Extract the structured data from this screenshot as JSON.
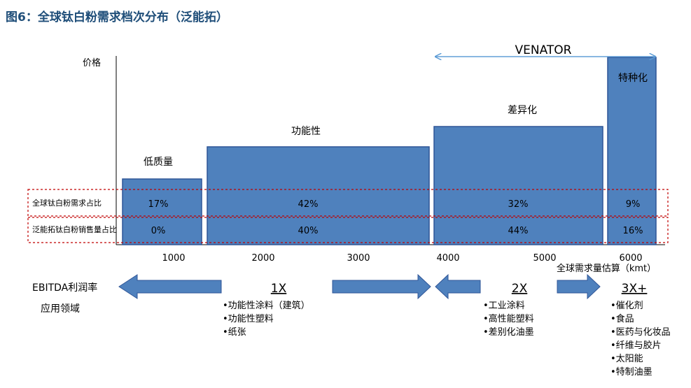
{
  "title": "图6：全球钛白粉需求档次分布（泛能拓）",
  "chart_data": {
    "type": "bar",
    "ylabel": "价格",
    "categories": [
      "低质量",
      "功能性",
      "差异化",
      "特种化"
    ],
    "x_ticks": [
      "1000",
      "2000",
      "3000",
      "4000",
      "5000",
      "6000"
    ],
    "x_axis_label": "全球需求量估算（kmt）",
    "rows": [
      {
        "label": "全球钛白粉需求占比",
        "values": [
          "17%",
          "42%",
          "32%",
          "9%"
        ]
      },
      {
        "label": "泛能拓钛白粉销售量占比",
        "values": [
          "0%",
          "40%",
          "44%",
          "16%"
        ]
      }
    ],
    "venator_label": "VENATOR"
  },
  "bottom": {
    "ebitda_line1": "EBITDA利润率",
    "ebitda_line2": "应用领域",
    "tiers": [
      {
        "label": "1X",
        "items": [
          "•功能性涂料（建筑）",
          "•功能性塑料",
          "•纸张"
        ]
      },
      {
        "label": "2X",
        "items": [
          "•工业涂料",
          "•高性能塑料",
          "•差别化油墨"
        ]
      },
      {
        "label": "3X+",
        "items": [
          "•催化剂",
          "•食品",
          "•医药与化妆品",
          "•纤维与胶片",
          "•太阳能",
          "•特制油墨"
        ]
      }
    ]
  }
}
